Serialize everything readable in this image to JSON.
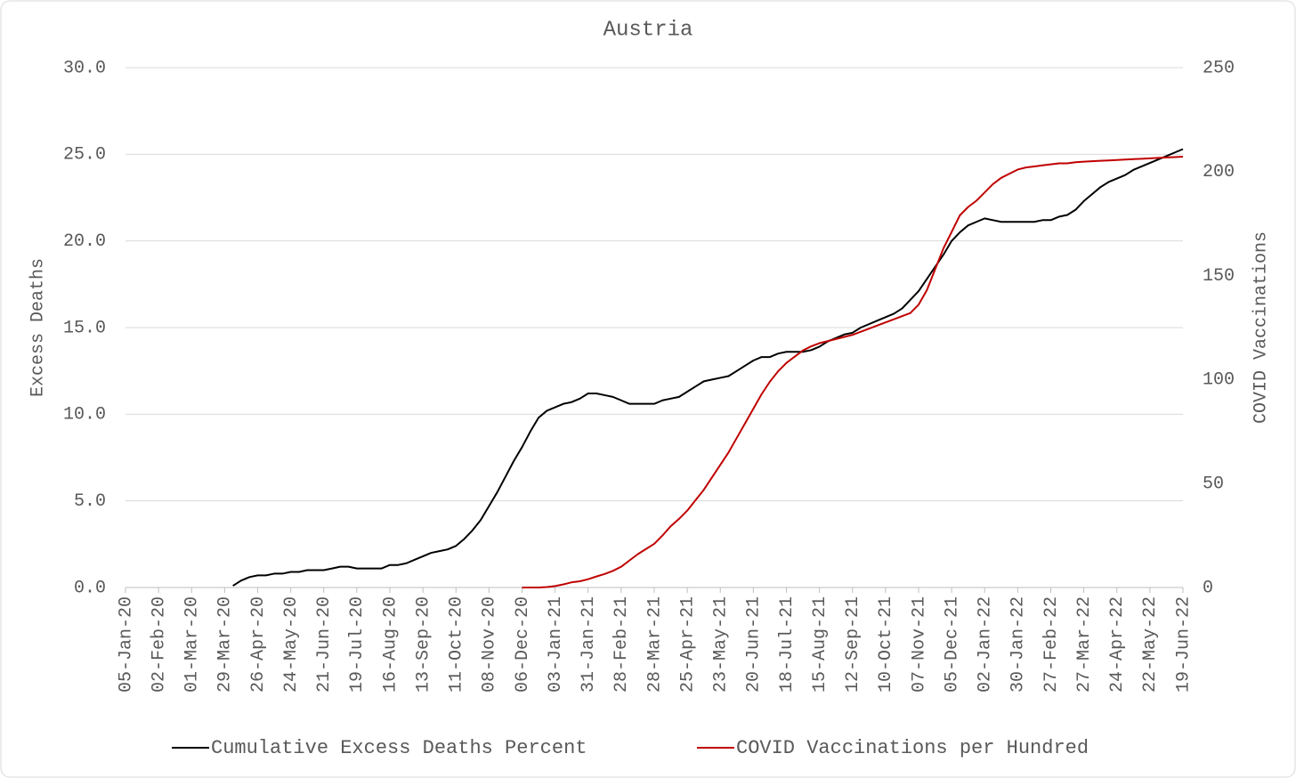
{
  "chart_data": {
    "type": "line",
    "title": "Austria",
    "ylabel": "Excess Deaths",
    "y2label": "COVID Vaccinations",
    "categories": [
      "05-Jan-20",
      null,
      null,
      null,
      "02-Feb-20",
      null,
      null,
      null,
      "01-Mar-20",
      null,
      null,
      null,
      "29-Mar-20",
      null,
      null,
      null,
      "26-Apr-20",
      null,
      null,
      null,
      "24-May-20",
      null,
      null,
      null,
      "21-Jun-20",
      null,
      null,
      null,
      "19-Jul-20",
      null,
      null,
      null,
      "16-Aug-20",
      null,
      null,
      null,
      "13-Sep-20",
      null,
      null,
      null,
      "11-Oct-20",
      null,
      null,
      null,
      "08-Nov-20",
      null,
      null,
      null,
      "06-Dec-20",
      null,
      null,
      null,
      "03-Jan-21",
      null,
      null,
      null,
      "31-Jan-21",
      null,
      null,
      null,
      "28-Feb-21",
      null,
      null,
      null,
      "28-Mar-21",
      null,
      null,
      null,
      "25-Apr-21",
      null,
      null,
      null,
      "23-May-21",
      null,
      null,
      null,
      "20-Jun-21",
      null,
      null,
      null,
      "18-Jul-21",
      null,
      null,
      null,
      "15-Aug-21",
      null,
      null,
      null,
      "12-Sep-21",
      null,
      null,
      null,
      "10-Oct-21",
      null,
      null,
      null,
      "07-Nov-21",
      null,
      null,
      null,
      "05-Dec-21",
      null,
      null,
      null,
      "02-Jan-22",
      null,
      null,
      null,
      "30-Jan-22",
      null,
      null,
      null,
      "27-Feb-22",
      null,
      null,
      null,
      "27-Mar-22",
      null,
      null,
      null,
      "24-Apr-22",
      null,
      null,
      null,
      "22-May-22",
      null,
      null,
      null,
      "19-Jun-22"
    ],
    "series": [
      {
        "name": "Cumulative Excess Deaths Percent",
        "color": "#000000",
        "axis": "y",
        "values": [
          null,
          null,
          null,
          null,
          null,
          null,
          null,
          null,
          null,
          null,
          null,
          null,
          null,
          0.1,
          0.4,
          0.6,
          0.7,
          0.7,
          0.8,
          0.8,
          0.9,
          0.9,
          1.0,
          1.0,
          1.0,
          1.1,
          1.2,
          1.2,
          1.1,
          1.1,
          1.1,
          1.1,
          1.3,
          1.3,
          1.4,
          1.6,
          1.8,
          2.0,
          2.1,
          2.2,
          2.4,
          2.8,
          3.3,
          3.9,
          4.7,
          5.5,
          6.4,
          7.3,
          8.1,
          9.0,
          9.8,
          10.2,
          10.4,
          10.6,
          10.7,
          10.9,
          11.2,
          11.2,
          11.1,
          11.0,
          10.8,
          10.6,
          10.6,
          10.6,
          10.6,
          10.8,
          10.9,
          11.0,
          11.3,
          11.6,
          11.9,
          12.0,
          12.1,
          12.2,
          12.5,
          12.8,
          13.1,
          13.3,
          13.3,
          13.5,
          13.6,
          13.6,
          13.6,
          13.7,
          13.9,
          14.2,
          14.4,
          14.6,
          14.7,
          15.0,
          15.2,
          15.4,
          15.6,
          15.8,
          16.1,
          16.6,
          17.1,
          17.8,
          18.5,
          19.2,
          20.0,
          20.5,
          20.9,
          21.1,
          21.3,
          21.2,
          21.1,
          21.1,
          21.1,
          21.1,
          21.1,
          21.2,
          21.2,
          21.4,
          21.5,
          21.8,
          22.3,
          22.7,
          23.1,
          23.4,
          23.6,
          23.8,
          24.1,
          24.3,
          24.5,
          24.7,
          24.9,
          25.1,
          25.3
        ]
      },
      {
        "name": "COVID Vaccinations per Hundred",
        "color": "#c00000",
        "axis": "y2",
        "values": [
          null,
          null,
          null,
          null,
          null,
          null,
          null,
          null,
          null,
          null,
          null,
          null,
          null,
          null,
          null,
          null,
          null,
          null,
          null,
          null,
          null,
          null,
          null,
          null,
          null,
          null,
          null,
          null,
          null,
          null,
          null,
          null,
          null,
          null,
          null,
          null,
          null,
          null,
          null,
          null,
          null,
          null,
          null,
          null,
          null,
          null,
          null,
          null,
          0,
          0,
          0,
          0.2,
          0.7,
          1.5,
          2.5,
          3.0,
          4.0,
          5.3,
          6.5,
          8,
          10,
          13,
          16,
          18.5,
          21,
          25,
          29.5,
          33,
          37,
          42,
          47,
          53,
          59,
          65,
          72,
          79,
          86,
          93,
          99,
          104,
          108,
          111,
          114,
          116,
          117.5,
          118.5,
          119.5,
          120.5,
          121.5,
          123,
          124.5,
          126,
          127.5,
          129,
          130.5,
          132,
          136,
          143,
          153,
          163,
          171,
          179,
          183,
          186,
          190,
          194,
          197,
          199,
          201,
          202,
          202.5,
          203,
          203.5,
          204,
          204,
          204.5,
          204.8,
          205,
          205.2,
          205.4,
          205.6,
          205.8,
          206,
          206.2,
          206.4,
          206.6,
          206.8,
          207,
          207.2
        ]
      }
    ],
    "ylim": [
      0,
      30
    ],
    "yticks": [
      {
        "value": 0,
        "label": "0.0"
      },
      {
        "value": 5,
        "label": "5.0"
      },
      {
        "value": 10,
        "label": "10.0"
      },
      {
        "value": 15,
        "label": "15.0"
      },
      {
        "value": 20,
        "label": "20.0"
      },
      {
        "value": 25,
        "label": "25.0"
      },
      {
        "value": 30,
        "label": "30.0"
      }
    ],
    "y2lim": [
      0,
      250
    ],
    "y2ticks": [
      0,
      50,
      100,
      150,
      200,
      250
    ],
    "grid": true,
    "legend": "bottom"
  }
}
